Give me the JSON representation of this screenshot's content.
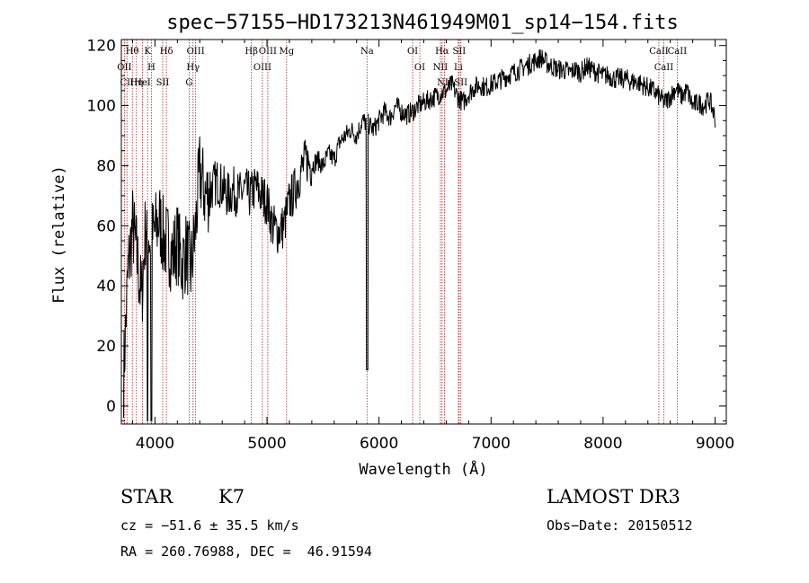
{
  "chart_data": {
    "type": "line",
    "title": "spec−57155−HD173213N461949M01_sp14−154.fits",
    "xlabel": "Wavelength (Å)",
    "ylabel": "Flux (relative)",
    "xlim": [
      3700,
      9100
    ],
    "ylim": [
      -6,
      122
    ],
    "xticks": [
      4000,
      5000,
      6000,
      7000,
      8000,
      9000
    ],
    "xtick_labels": [
      "4000",
      "5000",
      "6000",
      "7000",
      "8000",
      "9000"
    ],
    "yticks": [
      0,
      20,
      40,
      60,
      80,
      100,
      120
    ],
    "ytick_labels": [
      "0",
      "20",
      "40",
      "60",
      "80",
      "100",
      "120"
    ],
    "series": [
      {
        "name": "Flux",
        "x": [
          3720,
          3760,
          3800,
          3840,
          3880,
          3920,
          3960,
          4000,
          4040,
          4080,
          4120,
          4160,
          4200,
          4240,
          4280,
          4320,
          4360,
          4400,
          4450,
          4500,
          4550,
          4600,
          4650,
          4700,
          4750,
          4800,
          4850,
          4900,
          4950,
          5000,
          5050,
          5100,
          5150,
          5200,
          5250,
          5300,
          5350,
          5400,
          5450,
          5500,
          5550,
          5600,
          5650,
          5700,
          5750,
          5800,
          5850,
          5900,
          5950,
          6000,
          6050,
          6100,
          6150,
          6200,
          6250,
          6300,
          6350,
          6400,
          6450,
          6500,
          6550,
          6600,
          6650,
          6700,
          6750,
          6800,
          6850,
          6900,
          6950,
          7000,
          7050,
          7100,
          7150,
          7200,
          7250,
          7300,
          7350,
          7400,
          7450,
          7500,
          7550,
          7600,
          7650,
          7700,
          7750,
          7800,
          7850,
          7900,
          7950,
          8000,
          8050,
          8100,
          8150,
          8200,
          8250,
          8300,
          8350,
          8400,
          8450,
          8500,
          8550,
          8600,
          8650,
          8700,
          8750,
          8800,
          8850,
          8900,
          8950,
          9000
        ],
        "y": [
          10,
          45,
          60,
          50,
          35,
          62,
          55,
          58,
          62,
          55,
          54,
          50,
          55,
          47,
          52,
          45,
          58,
          78,
          70,
          72,
          75,
          73,
          70,
          72,
          70,
          72,
          70,
          73,
          70,
          68,
          60,
          58,
          60,
          68,
          72,
          78,
          82,
          80,
          82,
          80,
          84,
          82,
          88,
          90,
          92,
          90,
          95,
          94,
          92,
          95,
          98,
          96,
          100,
          98,
          97,
          98,
          100,
          101,
          102,
          103,
          104,
          105,
          107,
          103,
          101,
          104,
          106,
          107,
          106,
          107,
          108,
          109,
          110,
          111,
          112,
          113,
          114,
          115,
          116,
          114,
          113,
          112,
          112,
          111,
          112,
          111,
          113,
          112,
          111,
          110,
          110,
          109,
          109,
          109,
          108,
          108,
          107,
          106,
          105,
          103,
          101,
          103,
          106,
          103,
          105,
          100,
          101,
          100,
          102,
          96
        ]
      }
    ],
    "spectral_lines": [
      {
        "name": "Hθ",
        "wavelength": 3798
      },
      {
        "name": "OII",
        "wavelength": 3727
      },
      {
        "name": "CII",
        "wavelength": 3750
      },
      {
        "name": "K",
        "wavelength": 3934
      },
      {
        "name": "H",
        "wavelength": 3969
      },
      {
        "name": "HeI",
        "wavelength": 3889
      },
      {
        "name": "Hη",
        "wavelength": 3835
      },
      {
        "name": "Hδ",
        "wavelength": 4102
      },
      {
        "name": "SII",
        "wavelength": 4069
      },
      {
        "name": "OIII",
        "wavelength": 4363
      },
      {
        "name": "Hγ",
        "wavelength": 4340
      },
      {
        "name": "G",
        "wavelength": 4305
      },
      {
        "name": "Hβ",
        "wavelength": 4861
      },
      {
        "name": "OIII",
        "wavelength": 4959
      },
      {
        "name": "OIII",
        "wavelength": 5007
      },
      {
        "name": "Mg",
        "wavelength": 5175
      },
      {
        "name": "Na",
        "wavelength": 5893
      },
      {
        "name": "OI",
        "wavelength": 6300
      },
      {
        "name": "OI",
        "wavelength": 6364
      },
      {
        "name": "Hα",
        "wavelength": 6563
      },
      {
        "name": "NII",
        "wavelength": 6548
      },
      {
        "name": "NII",
        "wavelength": 6584
      },
      {
        "name": "SII",
        "wavelength": 6716
      },
      {
        "name": "Li",
        "wavelength": 6708
      },
      {
        "name": "SII",
        "wavelength": 6731
      },
      {
        "name": "CaII",
        "wavelength": 8498
      },
      {
        "name": "CaII",
        "wavelength": 8542
      },
      {
        "name": "CaII",
        "wavelength": 8662
      }
    ],
    "grid": false,
    "legend": "none"
  },
  "info": {
    "object_class": "STAR",
    "subclass": "K7",
    "survey": "LAMOST DR3",
    "redshift": "cz = −51.6 ± 35.5 km/s",
    "coordinates": "RA = 260.76988, DEC =  46.91594",
    "obs_date": "Obs−Date: 20150512"
  }
}
